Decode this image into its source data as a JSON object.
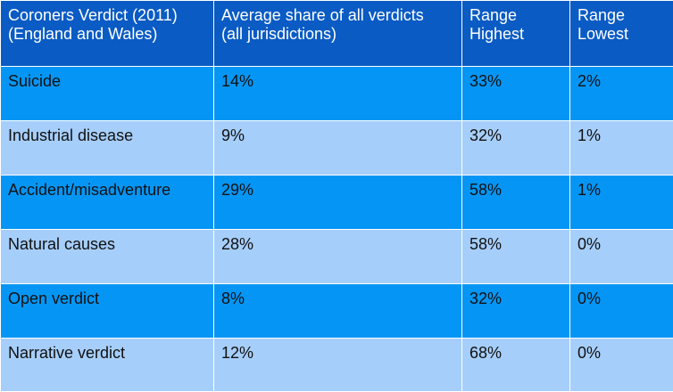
{
  "chart_data": {
    "type": "table",
    "columns": [
      "Coroners Verdict (2011)\n(England and Wales)",
      "Average share of all verdicts\n(all jurisdictions)",
      "Range\nHighest",
      "Range\nLowest"
    ],
    "rows": [
      {
        "verdict": "Suicide",
        "average": "14%",
        "highest": "33%",
        "lowest": "2%"
      },
      {
        "verdict": "Industrial disease",
        "average": "9%",
        "highest": "32%",
        "lowest": "1%"
      },
      {
        "verdict": "Accident/misadventure",
        "average": "29%",
        "highest": "58%",
        "lowest": "1%"
      },
      {
        "verdict": "Natural causes",
        "average": "28%",
        "highest": "58%",
        "lowest": "0%"
      },
      {
        "verdict": "Open verdict",
        "average": "8%",
        "highest": "32%",
        "lowest": "0%"
      },
      {
        "verdict": "Narrative verdict",
        "average": "12%",
        "highest": "68%",
        "lowest": "0%"
      }
    ]
  },
  "header": {
    "verdict_line1": "Coroners Verdict (2011)",
    "verdict_line2": "(England and Wales)",
    "average_line1": "Average share of all verdicts",
    "average_line2": "(all jurisdictions)",
    "highest_line1": "Range",
    "highest_line2": "Highest",
    "lowest_line1": "Range",
    "lowest_line2": "Lowest"
  },
  "colors": {
    "header_bg": "#0a5bc4",
    "row_dark": "#0596f5",
    "row_light": "#a6cefa",
    "grid_line": "#ffffff"
  }
}
